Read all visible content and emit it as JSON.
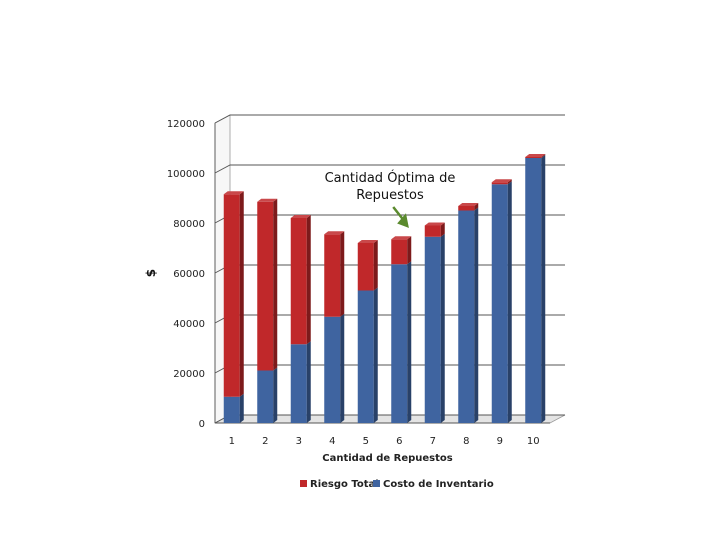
{
  "chart_data": {
    "type": "bar",
    "stacked": true,
    "three_d": true,
    "title": "",
    "xlabel": "Cantidad de Repuestos",
    "ylabel": "$",
    "ylim": [
      0,
      120000
    ],
    "yticks": [
      "0",
      "20000",
      "40000",
      "60000",
      "80000",
      "100000",
      "120000"
    ],
    "categories": [
      "1",
      "2",
      "3",
      "4",
      "5",
      "6",
      "7",
      "8",
      "9",
      "10"
    ],
    "series": [
      {
        "name": "Costo de Inventario",
        "color": "#3F64A0",
        "values": [
          10500,
          21000,
          31500,
          42500,
          53000,
          63500,
          74500,
          85000,
          95500,
          106000
        ]
      },
      {
        "name": "Riesgo Total",
        "color": "#C0282A",
        "values": [
          81000,
          67500,
          50500,
          33000,
          19000,
          10000,
          4500,
          1800,
          800,
          400
        ]
      }
    ],
    "annotation": {
      "lines": [
        "Cantidad Óptima de",
        "Repuestos"
      ],
      "target_category": "6",
      "arrow_color": "#5B8A2E"
    },
    "legend": {
      "position": "bottom",
      "order": [
        "Riesgo Total",
        "Costo de Inventario"
      ]
    },
    "grid": true
  }
}
